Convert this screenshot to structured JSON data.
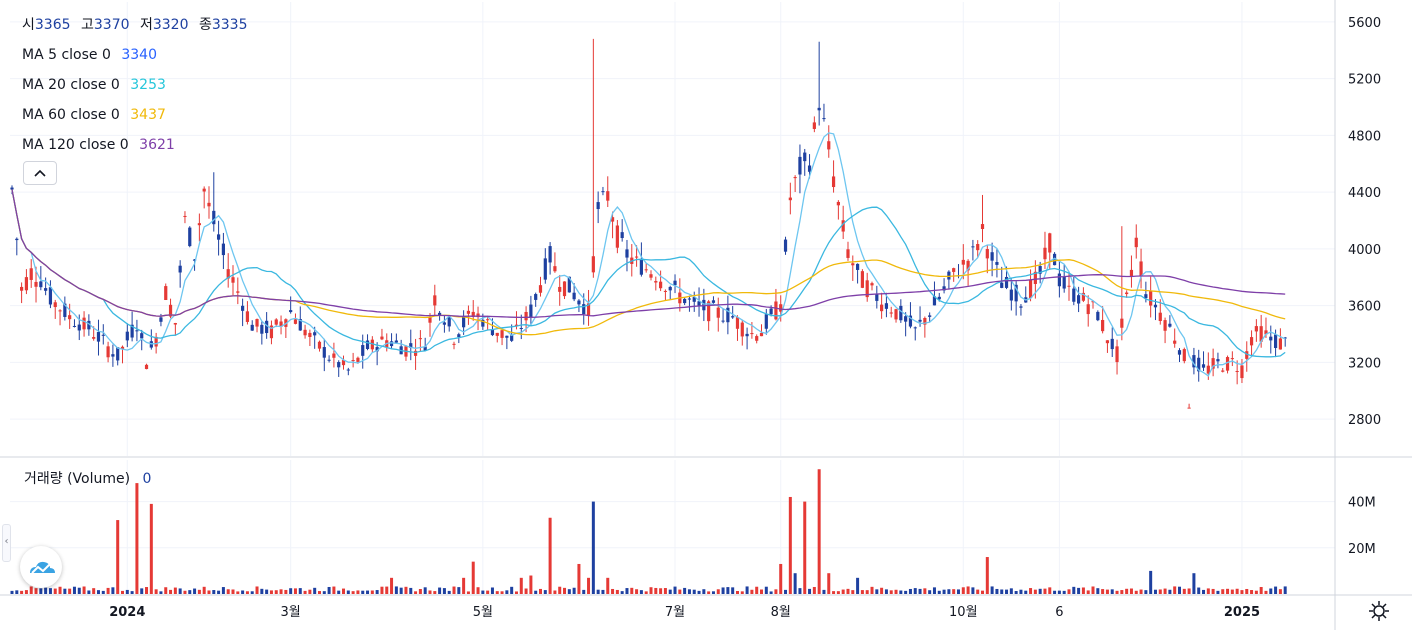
{
  "ohlc": {
    "open_label": "시",
    "open": "3365",
    "high_label": "고",
    "high": "3370",
    "low_label": "저",
    "low": "3320",
    "close_label": "종",
    "close": "3335"
  },
  "indicators": [
    {
      "label": "MA 5 close 0",
      "value": "3340",
      "color": "#2962ff"
    },
    {
      "label": "MA 20 close 0",
      "value": "3253",
      "color": "#26c6da"
    },
    {
      "label": "MA 60 close 0",
      "value": "3437",
      "color": "#f0b90b"
    },
    {
      "label": "MA 120 close 0",
      "value": "3621",
      "color": "#7e3fa8"
    }
  ],
  "collapse_icon": "chevron-up-icon",
  "volume_legend": {
    "label": "거래량 (Volume)",
    "value": "0"
  },
  "colors": {
    "up": "#e53935",
    "down": "#1e40a0",
    "grid": "#f0f3fa",
    "axis_text": "#131722"
  },
  "chart_data": [
    {
      "type": "candlestick",
      "y_ticks": [
        2800,
        3200,
        3600,
        4000,
        4400,
        4800,
        5200,
        5600
      ],
      "y_tick_labels": [
        "2800",
        "3200",
        "3600",
        "4000",
        "4400",
        "4800",
        "5200",
        "5600"
      ],
      "ylim": [
        2540,
        5740
      ],
      "x_tick_labels": [
        {
          "text": "2024",
          "bold": true,
          "i": 24
        },
        {
          "text": "3월",
          "bold": false,
          "i": 58
        },
        {
          "text": "5월",
          "bold": false,
          "i": 98
        },
        {
          "text": "7월",
          "bold": false,
          "i": 138
        },
        {
          "text": "8월",
          "bold": false,
          "i": 160
        },
        {
          "text": "10월",
          "bold": false,
          "i": 198
        },
        {
          "text": "6",
          "bold": false,
          "i": 218
        },
        {
          "text": "2025",
          "bold": true,
          "i": 256
        }
      ],
      "close_points": [
        [
          0,
          4420
        ],
        [
          2,
          3720
        ],
        [
          4,
          3840
        ],
        [
          6,
          3780
        ],
        [
          8,
          3650
        ],
        [
          12,
          3520
        ],
        [
          16,
          3440
        ],
        [
          22,
          3240
        ],
        [
          26,
          3480
        ],
        [
          28,
          3220
        ],
        [
          30,
          3380
        ],
        [
          32,
          3700
        ],
        [
          34,
          3480
        ],
        [
          36,
          4200
        ],
        [
          38,
          3960
        ],
        [
          40,
          4420
        ],
        [
          42,
          4180
        ],
        [
          44,
          3950
        ],
        [
          46,
          3780
        ],
        [
          50,
          3460
        ],
        [
          54,
          3420
        ],
        [
          58,
          3560
        ],
        [
          62,
          3380
        ],
        [
          66,
          3240
        ],
        [
          70,
          3140
        ],
        [
          74,
          3300
        ],
        [
          78,
          3360
        ],
        [
          82,
          3300
        ],
        [
          86,
          3340
        ],
        [
          88,
          3660
        ],
        [
          90,
          3520
        ],
        [
          92,
          3380
        ],
        [
          96,
          3560
        ],
        [
          100,
          3440
        ],
        [
          104,
          3360
        ],
        [
          108,
          3560
        ],
        [
          110,
          3760
        ],
        [
          112,
          3940
        ],
        [
          114,
          3780
        ],
        [
          116,
          3720
        ],
        [
          118,
          3640
        ],
        [
          120,
          3560
        ],
        [
          122,
          4280
        ],
        [
          124,
          4380
        ],
        [
          126,
          4100
        ],
        [
          128,
          3960
        ],
        [
          130,
          3900
        ],
        [
          134,
          3820
        ],
        [
          138,
          3700
        ],
        [
          142,
          3600
        ],
        [
          146,
          3560
        ],
        [
          150,
          3520
        ],
        [
          154,
          3400
        ],
        [
          156,
          3420
        ],
        [
          160,
          3620
        ],
        [
          162,
          4360
        ],
        [
          164,
          4560
        ],
        [
          166,
          4620
        ],
        [
          168,
          5040
        ],
        [
          170,
          4700
        ],
        [
          172,
          4300
        ],
        [
          174,
          3980
        ],
        [
          176,
          3820
        ],
        [
          180,
          3660
        ],
        [
          184,
          3560
        ],
        [
          188,
          3420
        ],
        [
          192,
          3600
        ],
        [
          196,
          3820
        ],
        [
          200,
          3960
        ],
        [
          202,
          4120
        ],
        [
          204,
          3920
        ],
        [
          206,
          3760
        ],
        [
          210,
          3640
        ],
        [
          214,
          3820
        ],
        [
          216,
          4060
        ],
        [
          218,
          3780
        ],
        [
          220,
          3700
        ],
        [
          224,
          3620
        ],
        [
          226,
          3540
        ],
        [
          228,
          3380
        ],
        [
          230,
          3260
        ],
        [
          232,
          3640
        ],
        [
          234,
          4060
        ],
        [
          236,
          3700
        ],
        [
          238,
          3600
        ],
        [
          240,
          3500
        ],
        [
          242,
          3380
        ],
        [
          244,
          3240
        ],
        [
          245,
          2920
        ],
        [
          246,
          3200
        ],
        [
          248,
          3140
        ],
        [
          250,
          3180
        ],
        [
          254,
          3200
        ],
        [
          256,
          3160
        ],
        [
          258,
          3380
        ],
        [
          260,
          3420
        ],
        [
          262,
          3360
        ],
        [
          264,
          3340
        ]
      ],
      "ma_series": [
        {
          "name": "MA 5",
          "color": "#2962ff",
          "value": 3340
        },
        {
          "name": "MA 20",
          "color": "#26c6da",
          "value": 3253
        },
        {
          "name": "MA 60",
          "color": "#f0b90b",
          "value": 3437
        },
        {
          "name": "MA 120",
          "color": "#7e3fa8",
          "value": 3621
        }
      ]
    },
    {
      "type": "bar",
      "title": "거래량 (Volume)",
      "y_ticks": [
        20000000,
        40000000
      ],
      "y_tick_labels": [
        "20M",
        "40M"
      ],
      "ylim": [
        0,
        58000000
      ],
      "spikes": [
        [
          22,
          32000000,
          "up"
        ],
        [
          26,
          48000000,
          "up"
        ],
        [
          29,
          39000000,
          "up"
        ],
        [
          112,
          33000000,
          "up"
        ],
        [
          118,
          13000000,
          "up"
        ],
        [
          121,
          40000000,
          "down"
        ],
        [
          162,
          42000000,
          "up"
        ],
        [
          165,
          40000000,
          "up"
        ],
        [
          168,
          54000000,
          "up"
        ],
        [
          170,
          9000000,
          "up"
        ],
        [
          203,
          16000000,
          "up"
        ],
        [
          237,
          10000000,
          "down"
        ],
        [
          246,
          9000000,
          "down"
        ],
        [
          79,
          7000000,
          "up"
        ],
        [
          96,
          14000000,
          "up"
        ],
        [
          94,
          7000000,
          "up"
        ],
        [
          106,
          7000000,
          "up"
        ],
        [
          108,
          8000000,
          "up"
        ],
        [
          160,
          13000000,
          "up"
        ],
        [
          163,
          9000000,
          "down"
        ],
        [
          124,
          7000000,
          "up"
        ],
        [
          120,
          7000000,
          "up"
        ],
        [
          176,
          7000000,
          "down"
        ]
      ],
      "base_volume": 2200000
    }
  ]
}
